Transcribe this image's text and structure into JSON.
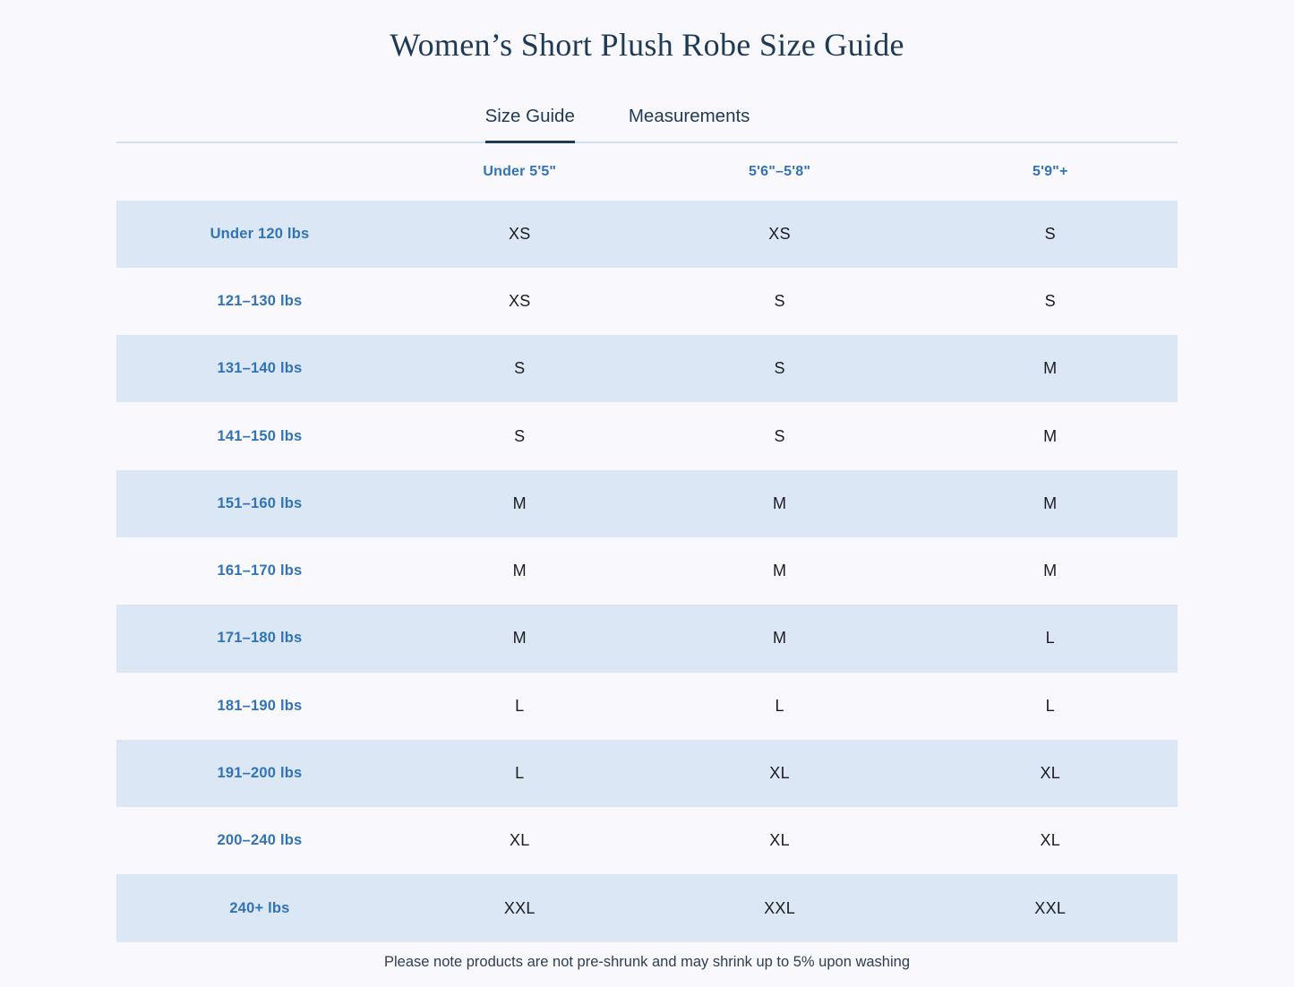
{
  "page": {
    "title": "Women’s Short Plush Robe Size Guide",
    "footnote": "Please note products are not pre-shrunk and may shrink up to 5% upon washing"
  },
  "tabs": [
    {
      "label": "Size Guide",
      "active": true
    },
    {
      "label": "Measurements",
      "active": false
    }
  ],
  "size_table": {
    "column_headers": [
      "Under 5'5\"",
      "5'6\"–5'8\"",
      "5'9\"+"
    ],
    "rows": [
      {
        "label": "Under 120 lbs",
        "sizes": [
          "XS",
          "XS",
          "S"
        ]
      },
      {
        "label": "121–130 lbs",
        "sizes": [
          "XS",
          "S",
          "S"
        ]
      },
      {
        "label": "131–140 lbs",
        "sizes": [
          "S",
          "S",
          "M"
        ]
      },
      {
        "label": "141–150 lbs",
        "sizes": [
          "S",
          "S",
          "M"
        ]
      },
      {
        "label": "151–160 lbs",
        "sizes": [
          "M",
          "M",
          "M"
        ]
      },
      {
        "label": "161–170 lbs",
        "sizes": [
          "M",
          "M",
          "M"
        ]
      },
      {
        "label": "171–180 lbs",
        "sizes": [
          "M",
          "M",
          "L"
        ]
      },
      {
        "label": "181–190 lbs",
        "sizes": [
          "L",
          "L",
          "L"
        ]
      },
      {
        "label": "191–200 lbs",
        "sizes": [
          "L",
          "XL",
          "XL"
        ]
      },
      {
        "label": "200–240 lbs",
        "sizes": [
          "XL",
          "XL",
          "XL"
        ]
      },
      {
        "label": "240+ lbs",
        "sizes": [
          "XXL",
          "XXL",
          "XXL"
        ]
      }
    ]
  },
  "colors": {
    "page_background": "#f9f8fd",
    "row_stripe": "#dbe7f4",
    "heading_navy": "#1e3a55",
    "accent_blue": "#3273b5",
    "cell_text": "#1b1c1e",
    "divider": "#cfdfeb"
  }
}
